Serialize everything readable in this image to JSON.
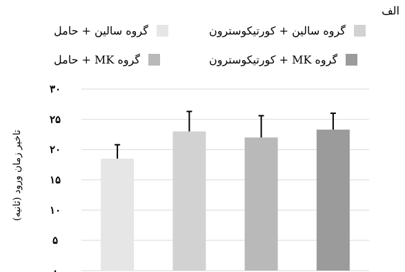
{
  "panel_label": "الف",
  "chart_data": {
    "type": "bar",
    "categories": [
      "گروه سالین + حامل",
      "گروه سالین + کورتیکوسترون",
      "گروه MK + حامل",
      "گروه MK + کورتیکوسترون"
    ],
    "values": [
      18.5,
      23,
      22,
      23.3
    ],
    "errors": [
      2.3,
      3.3,
      3.6,
      2.7
    ],
    "colors": [
      "#e6e6e6",
      "#d2d2d2",
      "#b9b9b9",
      "#9b9b9b"
    ],
    "ylabel": "تاخیر زمان ورود (ثانیه)",
    "ylim": [
      0,
      30
    ],
    "yticks": [
      0,
      5,
      10,
      15,
      20,
      25,
      30
    ],
    "ytick_labels": [
      "۰",
      "۵",
      "۱۰",
      "۱۵",
      "۲۰",
      "۲۵",
      "۳۰"
    ],
    "grid": true,
    "legend_position": "top"
  },
  "legend": [
    {
      "label": "گروه سالین + حامل",
      "color": "#e6e6e6"
    },
    {
      "label": "گروه سالین + کورتیکوسترون",
      "color": "#d2d2d2"
    },
    {
      "label": "گروه MK + حامل",
      "color": "#b9b9b9"
    },
    {
      "label": "گروه MK + کورتیکوسترون",
      "color": "#9b9b9b"
    }
  ]
}
